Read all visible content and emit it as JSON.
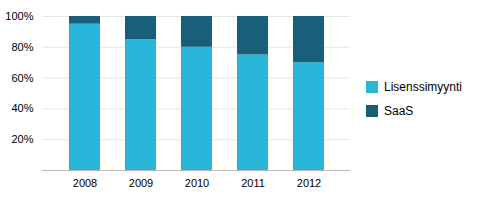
{
  "chart_data": {
    "type": "bar",
    "categories": [
      "2008",
      "2009",
      "2010",
      "2011",
      "2012"
    ],
    "series": [
      {
        "name": "Lisenssimyynti",
        "color": "#29b6d8",
        "values": [
          95,
          85,
          80,
          75,
          70
        ]
      },
      {
        "name": "SaaS",
        "color": "#1a5f7a",
        "values": [
          5,
          15,
          20,
          25,
          30
        ]
      }
    ],
    "stacked": true,
    "ylim": [
      0,
      100
    ],
    "yticks": [
      {
        "value": 20,
        "label": "20%"
      },
      {
        "value": 40,
        "label": "40%"
      },
      {
        "value": 60,
        "label": "60%"
      },
      {
        "value": 80,
        "label": "80%"
      },
      {
        "value": 100,
        "label": "100%"
      }
    ],
    "grid": true,
    "legend": "right"
  }
}
